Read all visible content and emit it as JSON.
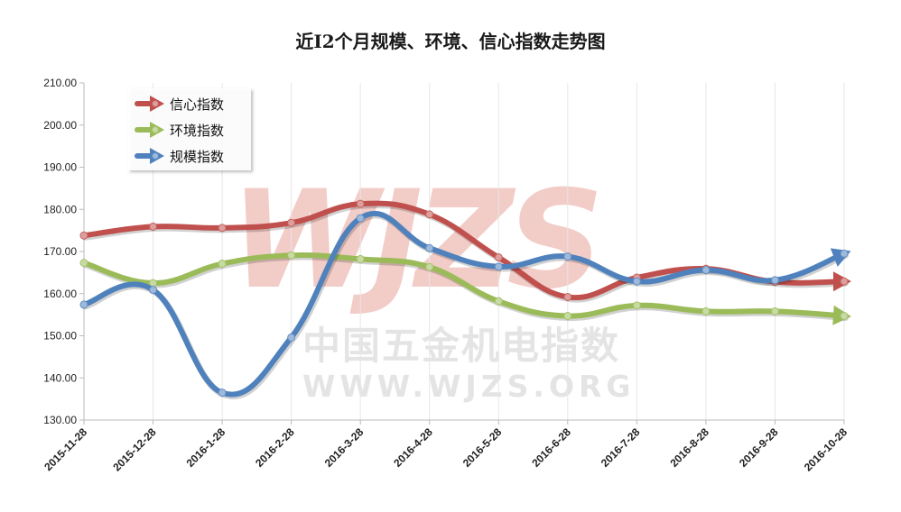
{
  "colors": {
    "xinxin": "#c0504d",
    "huanjing": "#9bbb59",
    "guimo": "#4f81bd",
    "grid": "#e6e6e6",
    "axis": "#bbbbbb",
    "watermark": "#e8a49a"
  },
  "watermark": {
    "logo": "WJZS",
    "cn": "中国五金机电指数",
    "url": "WWW.WJZS.ORG"
  },
  "chart_data": {
    "type": "line",
    "title": "近I2个月规模、环境、信心指数走势图",
    "xlabel": "",
    "ylabel": "",
    "ylim": [
      130,
      210
    ],
    "yticks": [
      "130.00",
      "140.00",
      "150.00",
      "160.00",
      "170.00",
      "180.00",
      "190.00",
      "200.00",
      "210.00"
    ],
    "grid": "vertical",
    "legend_position": "top-left",
    "categories": [
      "2015-11-28",
      "2015-12-28",
      "2016-1-28",
      "2016-2-28",
      "2016-3-28",
      "2016-4-28",
      "2016-5-28",
      "2016-6-28",
      "2016-7-28",
      "2016-8-28",
      "2016-9-28",
      "2016-10-28"
    ],
    "series": [
      {
        "name": "信心指数",
        "color_key": "xinxin",
        "values": [
          173.8,
          175.9,
          175.6,
          176.8,
          181.3,
          178.8,
          168.6,
          159.2,
          163.8,
          165.9,
          162.8,
          162.9
        ]
      },
      {
        "name": "环境指数",
        "color_key": "huanjing",
        "values": [
          167.3,
          162.5,
          167.1,
          169.1,
          168.2,
          166.3,
          158.2,
          154.7,
          157.2,
          155.8,
          155.8,
          154.7
        ]
      },
      {
        "name": "规模指数",
        "color_key": "guimo",
        "values": [
          157.4,
          160.9,
          136.5,
          149.6,
          177.9,
          170.8,
          166.4,
          168.8,
          162.9,
          165.6,
          163.2,
          169.5
        ]
      }
    ]
  }
}
